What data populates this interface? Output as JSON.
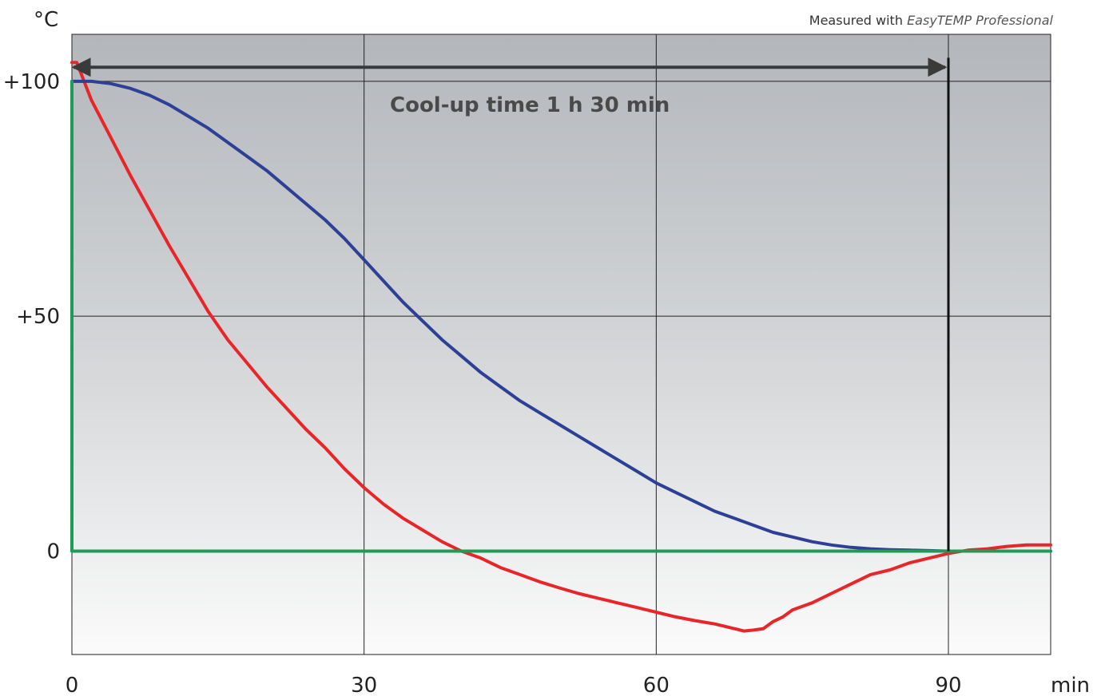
{
  "chart_data": {
    "type": "line",
    "ylabel": "°C",
    "xlabel": "min",
    "note_prefix": "Measured with ",
    "note_product": "EasyTEMP Professional",
    "annotation": "Cool-up time 1 h 30 min",
    "xlim": [
      0,
      100.5
    ],
    "ylim": [
      -22,
      110
    ],
    "x_ticks": [
      {
        "value": 0,
        "label": "0"
      },
      {
        "value": 30,
        "label": "30"
      },
      {
        "value": 60,
        "label": "60"
      },
      {
        "value": 90,
        "label": "90"
      }
    ],
    "y_ticks": [
      {
        "value": 0,
        "label": "0"
      },
      {
        "value": 50,
        "label": "+50"
      },
      {
        "value": 100,
        "label": "+100"
      }
    ],
    "grid": true,
    "annotation_arrow": {
      "x_start": 0,
      "x_end": 90,
      "y": 103
    },
    "marker_line": {
      "x": 90,
      "y_from": 0,
      "y_to": 105
    },
    "series": [
      {
        "color": "#e8262a",
        "points": [
          [
            0,
            104
          ],
          [
            0.5,
            104
          ],
          [
            2,
            96
          ],
          [
            4,
            88
          ],
          [
            6,
            80
          ],
          [
            8,
            72.5
          ],
          [
            10,
            65
          ],
          [
            12,
            58
          ],
          [
            14,
            51
          ],
          [
            16,
            45
          ],
          [
            18,
            40
          ],
          [
            20,
            35
          ],
          [
            22,
            30.5
          ],
          [
            24,
            26
          ],
          [
            26,
            22
          ],
          [
            28,
            17.5
          ],
          [
            30,
            13.5
          ],
          [
            32,
            10
          ],
          [
            34,
            7
          ],
          [
            36,
            4.5
          ],
          [
            38,
            2
          ],
          [
            40,
            0
          ],
          [
            42,
            -1.5
          ],
          [
            44,
            -3.5
          ],
          [
            46,
            -5
          ],
          [
            48,
            -6.5
          ],
          [
            50,
            -7.8
          ],
          [
            52,
            -9
          ],
          [
            54,
            -10
          ],
          [
            56,
            -11
          ],
          [
            58,
            -12
          ],
          [
            60,
            -13
          ],
          [
            62,
            -14
          ],
          [
            64,
            -14.8
          ],
          [
            66,
            -15.5
          ],
          [
            68,
            -16.5
          ],
          [
            69,
            -17
          ],
          [
            70,
            -16.8
          ],
          [
            71,
            -16.5
          ],
          [
            72,
            -15
          ],
          [
            73,
            -14
          ],
          [
            74,
            -12.5
          ],
          [
            76,
            -11
          ],
          [
            78,
            -9
          ],
          [
            80,
            -7
          ],
          [
            82,
            -5
          ],
          [
            84,
            -4
          ],
          [
            86,
            -2.5
          ],
          [
            88,
            -1.5
          ],
          [
            90,
            -0.5
          ],
          [
            92,
            0.2
          ],
          [
            94,
            0.5
          ],
          [
            96,
            1
          ],
          [
            98,
            1.3
          ],
          [
            100.5,
            1.3
          ]
        ]
      },
      {
        "color": "#2e3f96",
        "points": [
          [
            0,
            100
          ],
          [
            2,
            100
          ],
          [
            4,
            99.5
          ],
          [
            6,
            98.5
          ],
          [
            8,
            97
          ],
          [
            10,
            95
          ],
          [
            12,
            92.5
          ],
          [
            14,
            90
          ],
          [
            16,
            87
          ],
          [
            18,
            84
          ],
          [
            20,
            81
          ],
          [
            22,
            77.5
          ],
          [
            24,
            74
          ],
          [
            26,
            70.5
          ],
          [
            28,
            66.5
          ],
          [
            30,
            62
          ],
          [
            32,
            57.5
          ],
          [
            34,
            53
          ],
          [
            36,
            49
          ],
          [
            38,
            45
          ],
          [
            40,
            41.5
          ],
          [
            42,
            38
          ],
          [
            44,
            35
          ],
          [
            46,
            32
          ],
          [
            48,
            29.5
          ],
          [
            50,
            27
          ],
          [
            52,
            24.5
          ],
          [
            54,
            22
          ],
          [
            56,
            19.5
          ],
          [
            58,
            17
          ],
          [
            60,
            14.5
          ],
          [
            62,
            12.5
          ],
          [
            64,
            10.5
          ],
          [
            66,
            8.5
          ],
          [
            68,
            7
          ],
          [
            70,
            5.5
          ],
          [
            72,
            4
          ],
          [
            74,
            3
          ],
          [
            76,
            2
          ],
          [
            78,
            1.3
          ],
          [
            80,
            0.8
          ],
          [
            82,
            0.5
          ],
          [
            84,
            0.3
          ],
          [
            86,
            0.2
          ],
          [
            88,
            0.1
          ],
          [
            90,
            0
          ],
          [
            92,
            0
          ],
          [
            95,
            0
          ],
          [
            100.5,
            0
          ]
        ]
      },
      {
        "color": "#1f9a57",
        "points": [
          [
            0,
            100
          ],
          [
            0,
            0
          ],
          [
            100.5,
            0
          ]
        ]
      }
    ]
  }
}
